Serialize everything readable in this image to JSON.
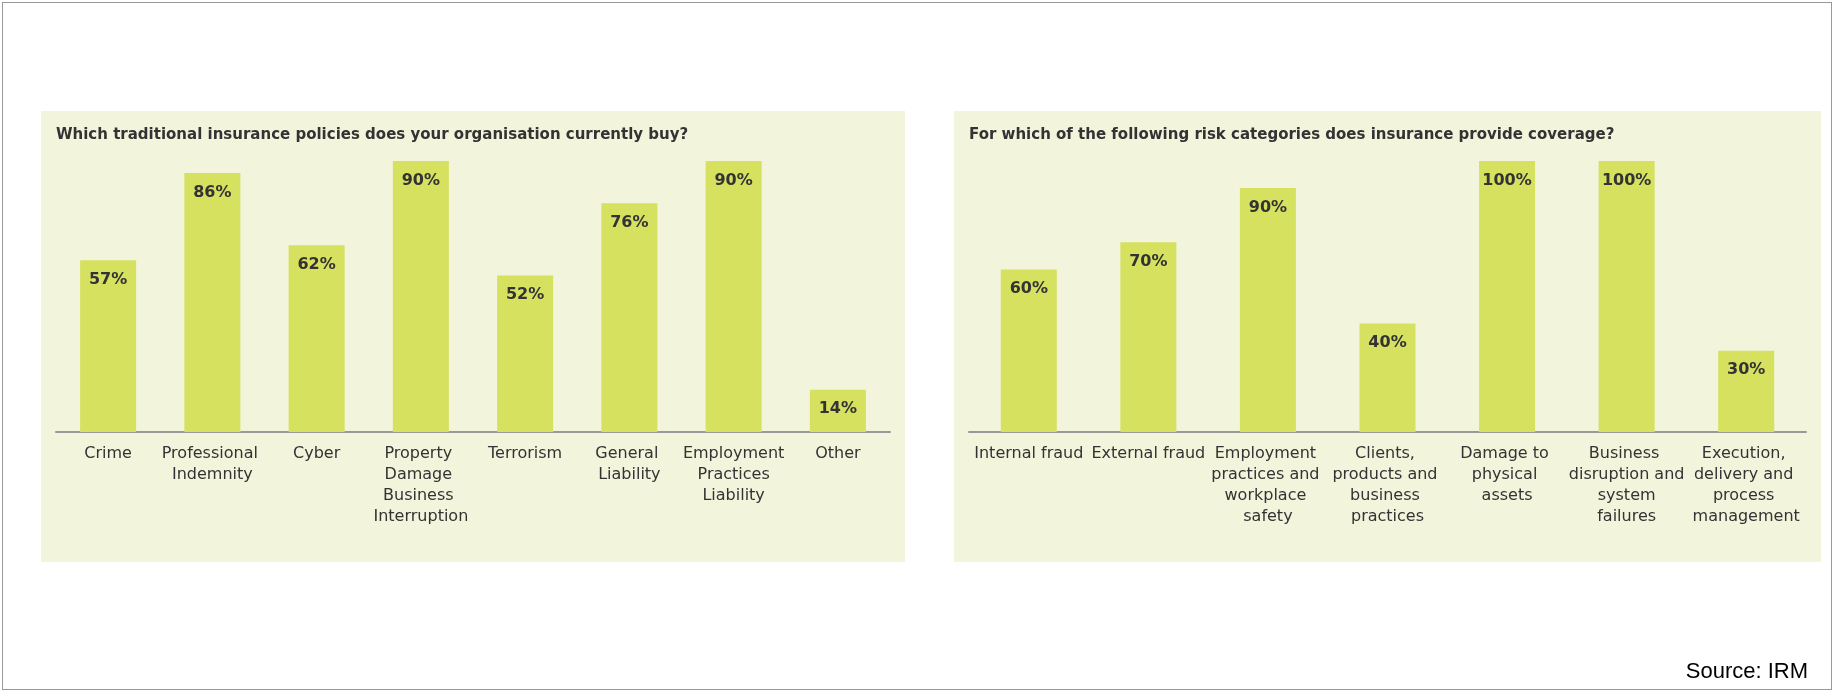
{
  "chart_data": [
    {
      "type": "bar",
      "title": "Which traditional insurance policies does your organisation currently buy?",
      "categories": [
        "Crime",
        "Professional Indemnity",
        "Cyber",
        "Property Damage Business Interruption",
        "Terrorism",
        "General Liability",
        "Employment Practices Liability",
        "Other"
      ],
      "values": [
        57,
        86,
        62,
        90,
        52,
        76,
        90,
        14
      ],
      "value_labels": [
        "57%",
        "86%",
        "62%",
        "90%",
        "52%",
        "76%",
        "90%",
        "14%"
      ],
      "color": "#d6e15f"
    },
    {
      "type": "bar",
      "title": "For which of the following risk categories does insurance provide coverage?",
      "categories": [
        "Internal fraud",
        "External fraud",
        "Employment practices and workplace safety",
        "Clients, products and business practices",
        "Damage to physical assets",
        "Business disruption and system failures",
        "Execution, delivery and process management"
      ],
      "values": [
        60,
        70,
        90,
        40,
        100,
        100,
        30
      ],
      "value_labels": [
        "60%",
        "70%",
        "90%",
        "40%",
        "100%",
        "100%",
        "30%"
      ],
      "color": "#d6e15f",
      "annotations": [
        "Source: IRM"
      ]
    }
  ]
}
